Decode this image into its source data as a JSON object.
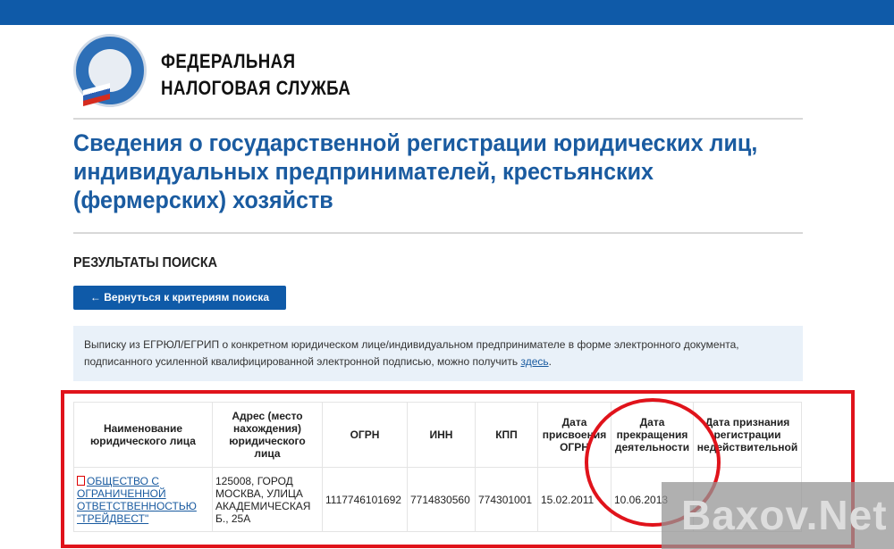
{
  "header": {
    "brand_line1": "ФЕДЕРАЛЬНАЯ",
    "brand_line2": "НАЛОГОВАЯ СЛУЖБА",
    "logo_text": "ФЕДЕРАЛЬНАЯ НАЛОГОВАЯ СЛУЖБА"
  },
  "page_title": "Сведения о государственной регистрации юридических лиц, индивидуальных предпринимателей, крестьянских (фермерских) хозяйств",
  "results_title": "РЕЗУЛЬТАТЫ ПОИСКА",
  "back_button": "← Вернуться к критериям поиска",
  "info": {
    "text": "Выписку из ЕГРЮЛ/ЕГРИП о конкретном юридическом лице/индивидуальном предпринимателе в форме электронного документа, подписанного усиленной квалифицированной электронной подписью, можно получить ",
    "link": "здесь",
    "end": "."
  },
  "table": {
    "headers": [
      "Наименование юридического лица",
      "Адрес (место нахождения) юридического лица",
      "ОГРН",
      "ИНН",
      "КПП",
      "Дата присвоения ОГРН",
      "Дата прекращения деятельности",
      "Дата признания регистрации недействительной"
    ],
    "rows": [
      {
        "name": "ОБЩЕСТВО С ОГРАНИЧЕННОЙ ОТВЕТСТВЕННОСТЬЮ \"ТРЕЙДВЕСТ\"",
        "address": "125008, ГОРОД МОСКВА, УЛИЦА АКАДЕМИЧЕСКАЯ Б., 25А",
        "ogrn": "1117746101692",
        "inn": "7714830560",
        "kpp": "774301001",
        "ogrn_date": "15.02.2011",
        "end_date": "10.06.2013",
        "invalid_date": ""
      }
    ]
  },
  "watermark": "Baxov.Net",
  "colors": {
    "accent": "#0f5aa8",
    "highlight": "#e0131b"
  }
}
